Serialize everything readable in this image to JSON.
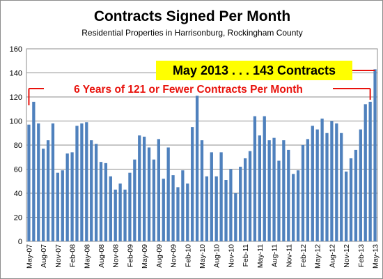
{
  "chart_data": {
    "type": "bar",
    "title": "Contracts Signed Per Month",
    "subtitle": "Residential Properties in Harrisonburg, Rockingham County",
    "xlabel": "",
    "ylabel": "",
    "ylim": [
      0,
      160
    ],
    "yticks": [
      0,
      20,
      40,
      60,
      80,
      100,
      120,
      140,
      160
    ],
    "grid": true,
    "legend": "none",
    "bar_color": "#4f81bd",
    "annotation_color": "#e8120c",
    "highlight_color": "#ffff00",
    "tick_labels": [
      "May-07",
      "Aug-07",
      "Nov-07",
      "Feb-08",
      "May-08",
      "Aug-08",
      "Nov-08",
      "Feb-09",
      "May-09",
      "Aug-09",
      "Nov-09",
      "Feb-10",
      "May-10",
      "Aug-10",
      "Nov-10",
      "Feb-11",
      "May-11",
      "Aug-11",
      "Nov-11",
      "Feb-12",
      "May-12",
      "Aug-12",
      "Nov-12",
      "Feb-13",
      "May-13"
    ],
    "tick_every": 3,
    "values": [
      97,
      116,
      98,
      77,
      84,
      98,
      57,
      59,
      73,
      74,
      96,
      98,
      99,
      84,
      81,
      66,
      65,
      54,
      43,
      48,
      43,
      57,
      68,
      88,
      87,
      78,
      68,
      85,
      52,
      78,
      55,
      45,
      59,
      48,
      95,
      121,
      84,
      54,
      74,
      54,
      74,
      51,
      60,
      40,
      62,
      69,
      75,
      104,
      88,
      104,
      84,
      86,
      67,
      84,
      76,
      56,
      59,
      80,
      85,
      96,
      93,
      102,
      90,
      100,
      98,
      90,
      58,
      69,
      76,
      93,
      114,
      116,
      143
    ],
    "annotations": {
      "highlight": "May 2013 . . . 143 Contracts",
      "bracket": "6 Years of 121 or Fewer Contracts Per Month"
    }
  }
}
